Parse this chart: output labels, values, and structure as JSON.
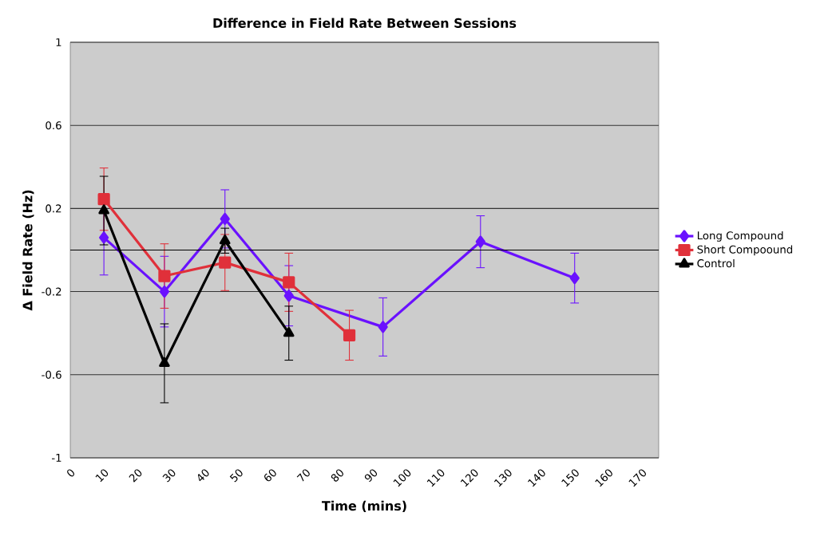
{
  "chart_data": {
    "type": "line",
    "title": "Difference in Field Rate Between Sessions",
    "xlabel": "Time (mins)",
    "ylabel": "Δ Field Rate (Hz)",
    "xlim": [
      0,
      175
    ],
    "xticks": [
      0,
      10,
      20,
      30,
      40,
      50,
      60,
      70,
      80,
      90,
      100,
      110,
      120,
      130,
      140,
      150,
      160,
      170
    ],
    "ylim": [
      -1,
      1
    ],
    "yticks": [
      -1,
      -0.6,
      -0.2,
      0.2,
      0.6,
      1
    ],
    "grid": "y",
    "legend": "right",
    "ref_lines": [
      {
        "axis": "y",
        "value": 0
      }
    ],
    "series": [
      {
        "name": "Long Compound",
        "color": "#6a11ff",
        "marker": "diamond",
        "x": [
          10,
          28,
          46,
          65,
          93,
          122,
          150
        ],
        "values": [
          0.06,
          -0.2,
          0.15,
          -0.22,
          -0.37,
          0.04,
          -0.135
        ],
        "errors": [
          0.18,
          0.17,
          0.14,
          0.145,
          0.14,
          0.125,
          0.12
        ]
      },
      {
        "name": "Short Compoound",
        "color": "#e0303a",
        "marker": "square",
        "x": [
          10,
          28,
          46,
          65,
          83
        ],
        "values": [
          0.245,
          -0.125,
          -0.06,
          -0.155,
          -0.41
        ],
        "errors": [
          0.15,
          0.155,
          0.135,
          0.14,
          0.12
        ]
      },
      {
        "name": "Control",
        "color": "#000000",
        "marker": "triangle",
        "x": [
          10,
          28,
          46,
          65
        ],
        "values": [
          0.19,
          -0.545,
          0.045,
          -0.4
        ],
        "errors": [
          0.165,
          0.19,
          0.06,
          0.13
        ]
      }
    ]
  }
}
